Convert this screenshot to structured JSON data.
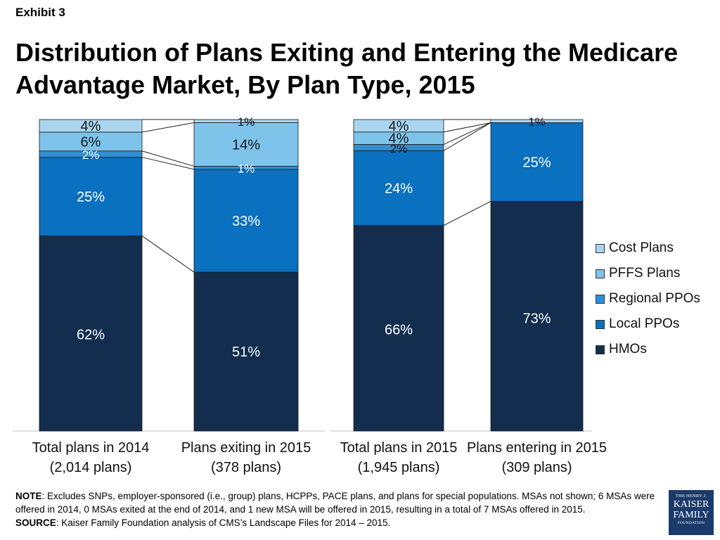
{
  "header": {
    "exhibit": "Exhibit 3",
    "title": "Distribution of Plans Exiting and Entering the Medicare Advantage Market, By Plan Type, 2015"
  },
  "chart_data": [
    {
      "type": "bar",
      "stacked": true,
      "normalized": true,
      "categories": [
        "Total plans in 2014\n(2,014 plans)",
        "Plans exiting in 2015\n(378 plans)"
      ],
      "series": [
        {
          "name": "HMOs",
          "values": [
            62,
            51
          ],
          "labels": [
            "62%",
            "51%"
          ]
        },
        {
          "name": "Local PPOs",
          "values": [
            25,
            33
          ],
          "labels": [
            "25%",
            "33%"
          ]
        },
        {
          "name": "Regional PPOs",
          "values": [
            2,
            1
          ],
          "labels": [
            "2%",
            "1%"
          ]
        },
        {
          "name": "PFFS Plans",
          "values": [
            6,
            14
          ],
          "labels": [
            "6%",
            "14%"
          ]
        },
        {
          "name": "Cost Plans",
          "values": [
            4,
            1
          ],
          "labels": [
            "4%",
            "1%"
          ]
        }
      ]
    },
    {
      "type": "bar",
      "stacked": true,
      "normalized": true,
      "categories": [
        "Total plans in 2015\n(1,945 plans)",
        "Plans entering in 2015\n(309 plans)"
      ],
      "series": [
        {
          "name": "HMOs",
          "values": [
            66,
            73
          ],
          "labels": [
            "66%",
            "73%"
          ]
        },
        {
          "name": "Local PPOs",
          "values": [
            24,
            25
          ],
          "labels": [
            "24%",
            "25%"
          ]
        },
        {
          "name": "Regional PPOs",
          "values": [
            2,
            0
          ],
          "labels": [
            "2%",
            ""
          ]
        },
        {
          "name": "PFFS Plans",
          "values": [
            4,
            0
          ],
          "labels": [
            "4%",
            ""
          ]
        },
        {
          "name": "Cost Plans",
          "values": [
            4,
            1
          ],
          "labels": [
            "4%",
            "1%"
          ]
        }
      ]
    }
  ],
  "legend": {
    "placement": "right",
    "items": [
      {
        "label": "Cost Plans",
        "color": "#a9d5ef"
      },
      {
        "label": "PFFS Plans",
        "color": "#7ec3ea"
      },
      {
        "label": "Regional PPOs",
        "color": "#2f8fd6"
      },
      {
        "label": "Local PPOs",
        "color": "#0a70c0"
      },
      {
        "label": "HMOs",
        "color": "#122d4d"
      }
    ]
  },
  "colors": {
    "HMOs": "#122d4d",
    "Local PPOs": "#0a70c0",
    "Regional PPOs": "#2f8fd6",
    "PFFS Plans": "#7ec3ea",
    "Cost Plans": "#a9d5ef"
  },
  "footer": {
    "note_label": "NOTE",
    "note_text": ": Excludes SNPs, employer-sponsored (i.e., group) plans, HCPPs, PACE plans, and plans for special populations.  MSAs not shown; 6 MSAs were offered in 2014, 0 MSAs exited at the end of 2014, and 1 new MSA will be offered in 2015, resulting in a total of 7 MSAs offered in 2015.",
    "source_label": "SOURCE",
    "source_text": ": Kaiser Family Foundation analysis of CMS’s Landscape Files for 2014 – 2015."
  },
  "logo": {
    "line1": "THE HENRY J.",
    "line2": "KAISER",
    "line3": "FAMILY",
    "line4": "FOUNDATION"
  }
}
